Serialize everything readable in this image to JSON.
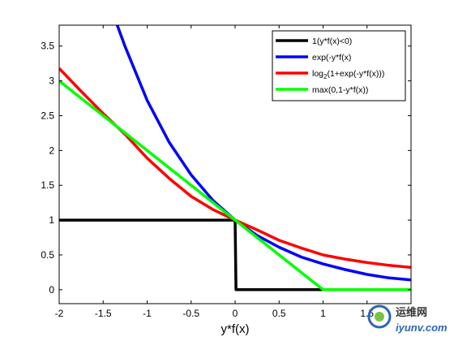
{
  "chart_data": {
    "type": "line",
    "title": "",
    "xlabel": "y*f(x)",
    "ylabel": "",
    "xlim": [
      -2,
      2
    ],
    "ylim": [
      -0.2,
      3.8
    ],
    "xticks": [
      -2,
      -1.5,
      -1,
      -0.5,
      0,
      0.5,
      1,
      1.5
    ],
    "xtick_labels": [
      "-2",
      "-1.5",
      "-1",
      "-0.5",
      "0",
      "0.5",
      "1",
      "1.5"
    ],
    "yticks": [
      0,
      0.5,
      1,
      1.5,
      2,
      2.5,
      3,
      3.5
    ],
    "ytick_labels": [
      "0",
      "0.5",
      "1",
      "1.5",
      "2",
      "2.5",
      "3",
      "3.5"
    ],
    "grid": false,
    "legend_position": "top-right",
    "series": [
      {
        "name": "1(y*f(x)<0)",
        "color": "#000000",
        "points": [
          [
            -2,
            1
          ],
          [
            0,
            1
          ],
          [
            0.01,
            0
          ],
          [
            2,
            0
          ]
        ]
      },
      {
        "name": "exp(-y*f(x)",
        "color": "#0000ff",
        "points": [
          [
            -1.34,
            3.8
          ],
          [
            -1.25,
            3.49
          ],
          [
            -1,
            2.72
          ],
          [
            -0.75,
            2.12
          ],
          [
            -0.5,
            1.65
          ],
          [
            -0.25,
            1.28
          ],
          [
            0,
            1
          ],
          [
            0.25,
            0.78
          ],
          [
            0.5,
            0.61
          ],
          [
            0.75,
            0.47
          ],
          [
            1,
            0.37
          ],
          [
            1.25,
            0.29
          ],
          [
            1.5,
            0.22
          ],
          [
            1.75,
            0.17
          ],
          [
            2,
            0.14
          ]
        ]
      },
      {
        "name": "log_2(1+exp(-y*f(x)))",
        "legend_label_parts": [
          "log",
          "2",
          "(1+exp(-y*f(x)))"
        ],
        "color": "#ff0000",
        "points": [
          [
            -2,
            3.18
          ],
          [
            -1.75,
            2.85
          ],
          [
            -1.5,
            2.53
          ],
          [
            -1.25,
            2.23
          ],
          [
            -1,
            1.89
          ],
          [
            -0.75,
            1.6
          ],
          [
            -0.5,
            1.34
          ],
          [
            -0.25,
            1.15
          ],
          [
            0,
            1
          ],
          [
            0.25,
            0.86
          ],
          [
            0.5,
            0.71
          ],
          [
            0.75,
            0.6
          ],
          [
            1,
            0.5
          ],
          [
            1.25,
            0.44
          ],
          [
            1.5,
            0.39
          ],
          [
            1.75,
            0.35
          ],
          [
            2,
            0.32
          ]
        ]
      },
      {
        "name": "max(0,1-y*f(x))",
        "color": "#00ff00",
        "points": [
          [
            -2,
            3
          ],
          [
            1,
            0
          ],
          [
            2,
            0
          ]
        ]
      }
    ]
  },
  "watermark": {
    "text": "运维网",
    "subtext": "iyunv.com"
  }
}
